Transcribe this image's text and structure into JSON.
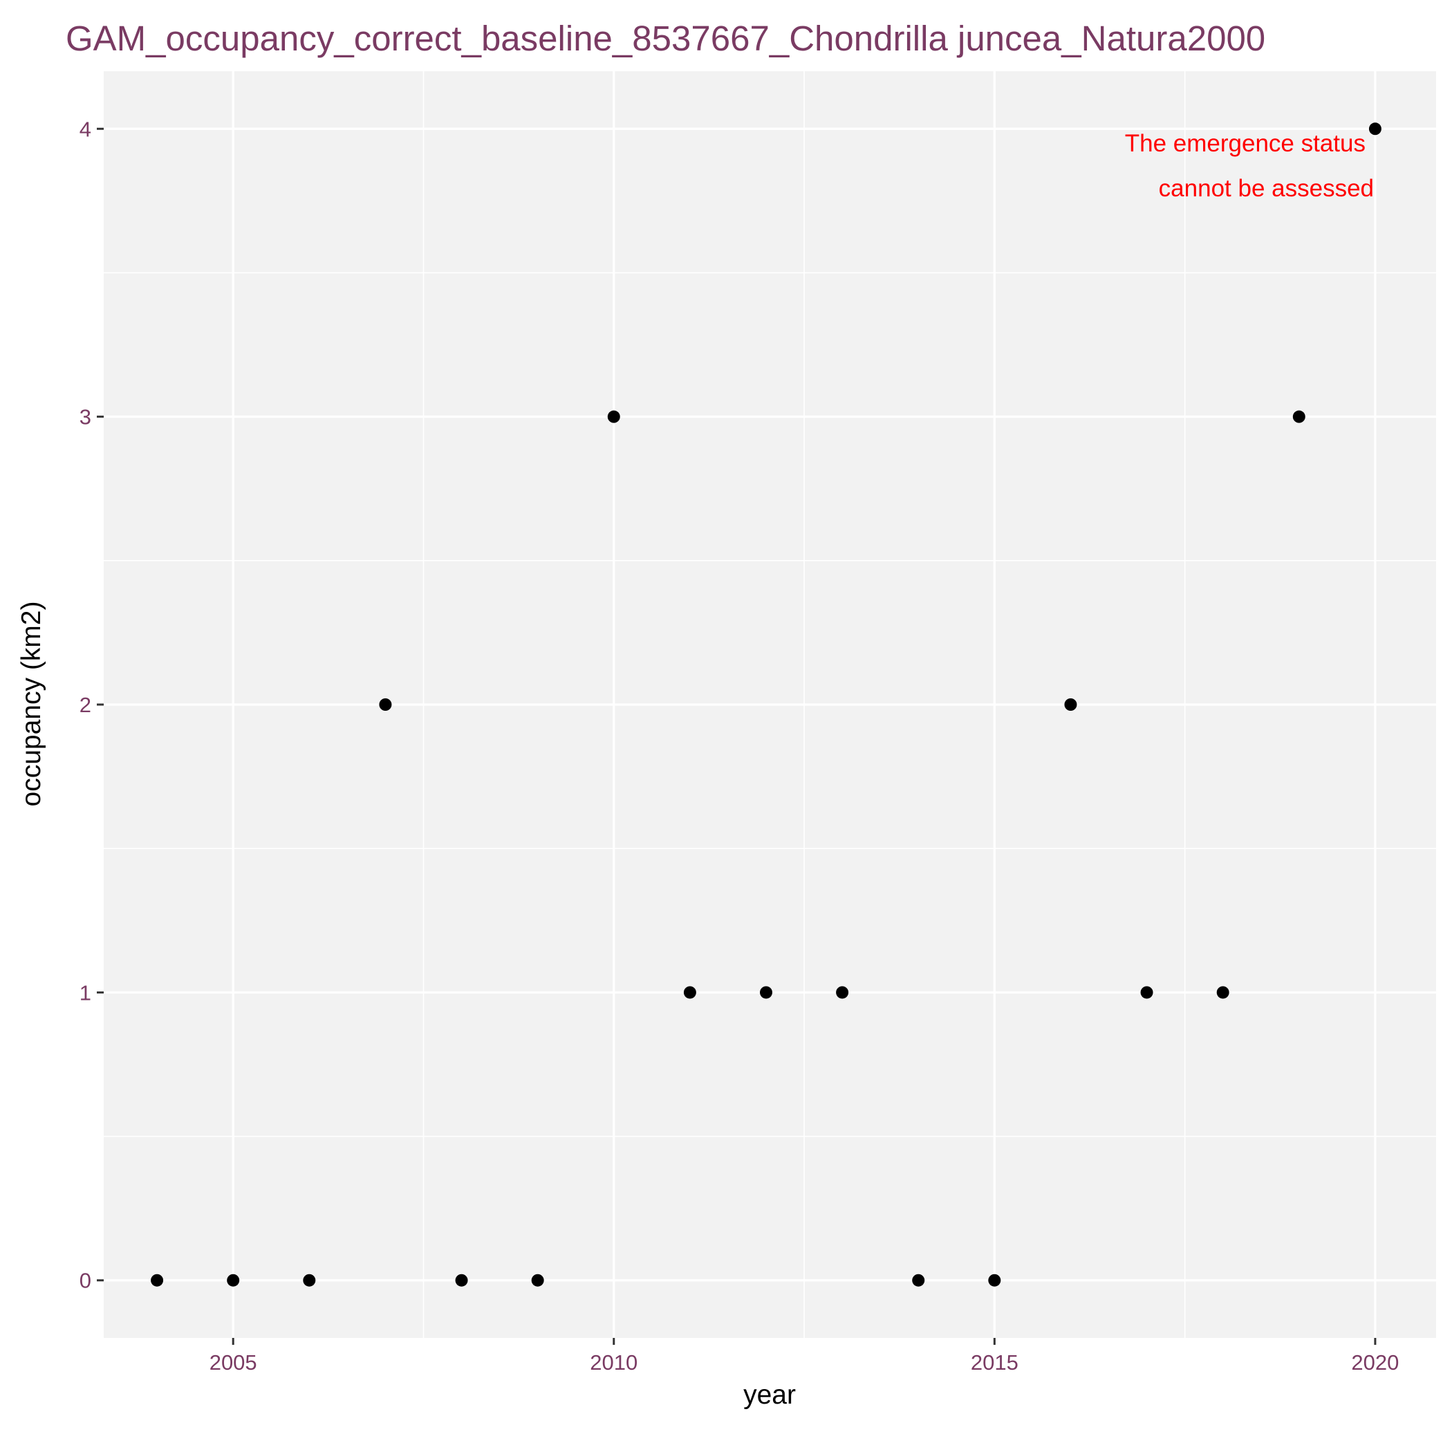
{
  "chart_data": {
    "type": "scatter",
    "title": "GAM_occupancy_correct_baseline_8537667_Chondrilla juncea_Natura2000",
    "xlabel": "year",
    "ylabel": "occupancy (km2)",
    "xlim": [
      2003.3,
      2020.8
    ],
    "ylim": [
      -0.2,
      4.2
    ],
    "x_ticks": [
      2005,
      2010,
      2015,
      2020
    ],
    "y_ticks": [
      0,
      1,
      2,
      3,
      4
    ],
    "x": [
      2004,
      2005,
      2006,
      2007,
      2008,
      2009,
      2010,
      2011,
      2012,
      2013,
      2014,
      2015,
      2016,
      2017,
      2018,
      2019,
      2020
    ],
    "y": [
      0,
      0,
      0,
      2,
      0,
      0,
      3,
      1,
      1,
      1,
      0,
      0,
      2,
      1,
      1,
      3,
      4
    ],
    "annotation": [
      "The emergence status",
      "cannot be assessed"
    ],
    "grid": true,
    "legend": "none",
    "colors": {
      "panel": "#f2f2f2",
      "points": "#000000",
      "title": "#7a3b63",
      "annotation": "#ff0000"
    }
  }
}
